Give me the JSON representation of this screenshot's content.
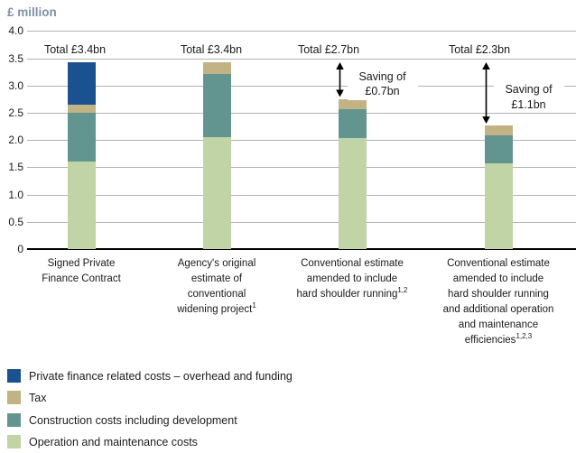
{
  "chart_data": {
    "type": "bar",
    "stacked": true,
    "title": "£ million",
    "ylabel": "£ million",
    "ylim": [
      0,
      4.0
    ],
    "ytick_step": 0.5,
    "grid": true,
    "legend_position": "bottom-left",
    "yticks": [
      {
        "label": "4.0",
        "value": 4.0
      },
      {
        "label": "3.5",
        "value": 3.5
      },
      {
        "label": "3.0",
        "value": 3.0
      },
      {
        "label": "2.5",
        "value": 2.5
      },
      {
        "label": "2.0",
        "value": 2.0
      },
      {
        "label": "1.5",
        "value": 1.5
      },
      {
        "label": "1.0",
        "value": 1.0
      },
      {
        "label": "0.5",
        "value": 0.5
      },
      {
        "label": "0",
        "value": 0
      }
    ],
    "categories": [
      {
        "text": "Signed Private Finance Contract",
        "lines": [
          "Signed Private",
          "Finance Contract"
        ],
        "sup": ""
      },
      {
        "text": "Agency's original estimate of conventional widening project(1)",
        "lines": [
          "Agency's original",
          "estimate of",
          "conventional",
          "widening project"
        ],
        "sup": "1"
      },
      {
        "text": "Conventional estimate amended to include hard shoulder running(1,2)",
        "lines": [
          "Conventional estimate",
          "amended to include",
          "hard shoulder running"
        ],
        "sup": "1,2"
      },
      {
        "text": "Conventional estimate amended to include hard shoulder running and additional operation and maintenance efficiencies(1,2,3)",
        "lines": [
          "Conventional estimate",
          "amended to include",
          "hard shoulder running",
          "and additional operation",
          "and maintenance",
          "efficiencies"
        ],
        "sup": "1,2,3"
      }
    ],
    "series": [
      {
        "name": "Operation and maintenance costs",
        "color": "#c0d4a5",
        "values": [
          1.6,
          2.06,
          2.04,
          1.58
        ]
      },
      {
        "name": "Construction costs including development",
        "color": "#639590",
        "values": [
          0.9,
          1.16,
          0.53,
          0.5
        ]
      },
      {
        "name": "Tax",
        "color": "#c1b384",
        "values": [
          0.15,
          0.2,
          0.18,
          0.18
        ]
      },
      {
        "name": "Private finance related costs – overhead and funding",
        "color": "#1a5191",
        "values": [
          0.77,
          0,
          0,
          0
        ]
      }
    ],
    "totals": [
      "Total £3.4bn",
      "Total £3.4bn",
      "Total £2.7bn",
      "Total £2.3bn"
    ],
    "annotations": [
      {
        "target_bar": 2,
        "lines": [
          "Saving of",
          "£0.7bn"
        ],
        "text": "Saving of £0.7bn",
        "from": 3.42,
        "to": 2.75
      },
      {
        "target_bar": 3,
        "lines": [
          "Saving of",
          "£1.1bn"
        ],
        "text": "Saving of £1.1bn",
        "from": 3.42,
        "to": 2.26
      }
    ]
  },
  "legend": {
    "items": [
      {
        "label": "Private finance related costs – overhead and funding",
        "color": "#1a5191"
      },
      {
        "label": "Tax",
        "color": "#c1b384"
      },
      {
        "label": "Construction costs including development",
        "color": "#639590"
      },
      {
        "label": "Operation and maintenance costs",
        "color": "#c0d4a5"
      }
    ]
  }
}
